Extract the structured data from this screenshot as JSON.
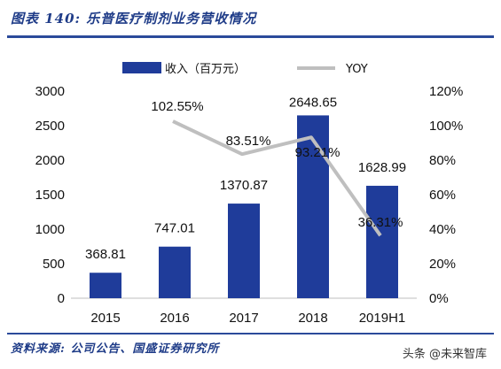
{
  "header": {
    "title": "图表 140:  乐普医疗制剂业务营收情况"
  },
  "footer": {
    "source": "资料来源:  公司公告、国盛证券研究所",
    "watermark": "头条 @未来智库"
  },
  "chart_data": {
    "type": "bar",
    "categories": [
      "2015",
      "2016",
      "2017",
      "2018",
      "2019H1"
    ],
    "series": [
      {
        "name": "收入（百万元）",
        "type": "bar",
        "axis": "left",
        "values": [
          368.81,
          747.01,
          1370.87,
          2648.65,
          1628.99
        ],
        "labels": [
          "368.81",
          "747.01",
          "1370.87",
          "2648.65",
          "1628.99"
        ]
      },
      {
        "name": "YOY",
        "type": "line",
        "axis": "right",
        "values": [
          null,
          102.55,
          83.51,
          93.21,
          36.31
        ],
        "labels": [
          "",
          "102.55%",
          "83.51%",
          "93.21%",
          "36.31%"
        ]
      }
    ],
    "y_left": {
      "min": 0,
      "max": 3000,
      "ticks": [
        "0",
        "500",
        "1000",
        "1500",
        "2000",
        "2500",
        "3000"
      ]
    },
    "y_right": {
      "min": 0,
      "max": 120,
      "ticks": [
        "0%",
        "20%",
        "40%",
        "60%",
        "80%",
        "100%",
        "120%"
      ]
    },
    "colors": {
      "bar": "#1f3c9a",
      "line": "#bfbfbf"
    },
    "legend": "top"
  }
}
